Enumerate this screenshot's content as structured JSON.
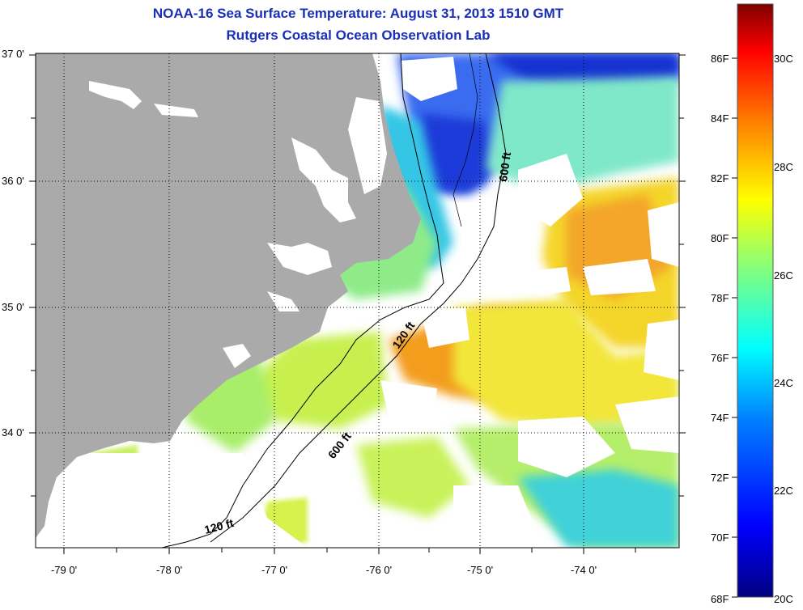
{
  "header": {
    "title": "NOAA-16 Sea Surface Temperature:  August 31, 2013 1510 GMT",
    "subtitle": "Rutgers Coastal Ocean Observation Lab"
  },
  "map": {
    "lat_labels": [
      "37 0'",
      "36 0'",
      "35 0'",
      "34 0'"
    ],
    "lon_labels": [
      "-79 0'",
      "-78 0'",
      "-77 0'",
      "-76 0'",
      "-75 0'",
      "-74 0'"
    ],
    "contours": {
      "c600_north": "600 ft",
      "c120": "120 ft",
      "c600_south": "600 ft",
      "c120_south": "120 ft"
    },
    "colors": {
      "land": "#aaaaaa",
      "cloud": "#ffffff",
      "cold_offshore": "#1f3fe0",
      "cool_shelf": "#2ec8e6",
      "mid": "#7ef07e",
      "warm": "#f2ee2a",
      "warmest": "#f5a418"
    }
  },
  "colorbar": {
    "fahrenheit": [
      "86F",
      "84F",
      "82F",
      "80F",
      "78F",
      "76F",
      "74F",
      "72F",
      "70F",
      "68F"
    ],
    "celsius": [
      "30C",
      "28C",
      "26C",
      "24C",
      "22C",
      "20C"
    ],
    "min_c": 20,
    "max_c": 31
  }
}
